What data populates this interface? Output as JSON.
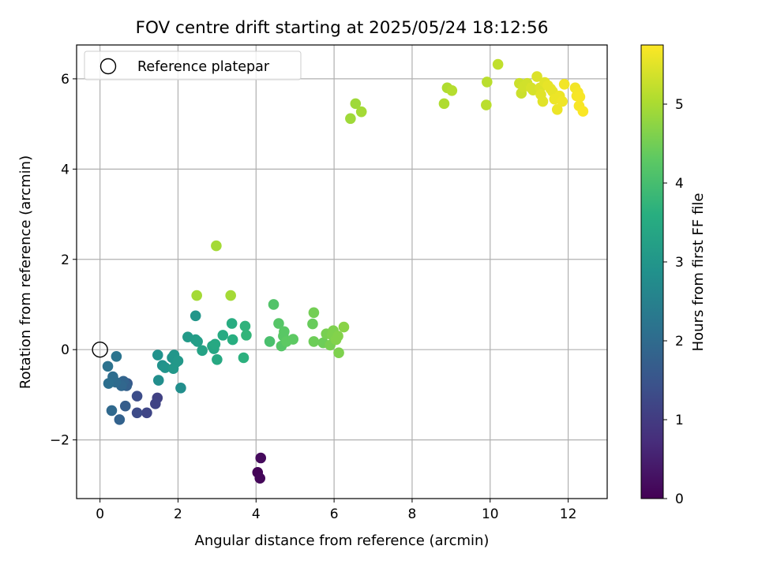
{
  "chart_data": {
    "type": "scatter",
    "title": "FOV centre drift starting at 2025/05/24 18:12:56",
    "xlabel": "Angular distance from reference (arcmin)",
    "ylabel": "Rotation from reference (arcmin)",
    "colorbar_label": "Hours from first FF file",
    "xlim": [
      -0.6,
      13.0
    ],
    "ylim": [
      -3.3,
      6.75
    ],
    "xticks": [
      0,
      2,
      4,
      6,
      8,
      10,
      12
    ],
    "yticks": [
      -2,
      0,
      2,
      4,
      6
    ],
    "xtick_labels": [
      "0",
      "2",
      "4",
      "6",
      "8",
      "10",
      "12"
    ],
    "ytick_labels": [
      "−2",
      "0",
      "2",
      "4",
      "6"
    ],
    "colorbar_range": [
      0,
      5.75
    ],
    "colorbar_ticks": [
      0,
      1,
      2,
      3,
      4,
      5
    ],
    "colorbar_tick_labels": [
      "0",
      "1",
      "2",
      "3",
      "4",
      "5"
    ],
    "colormap": "viridis",
    "grid": true,
    "legend": {
      "position": "top-left",
      "label": "Reference platepar"
    },
    "reference_point": {
      "x": 0,
      "y": 0
    },
    "points": [
      {
        "x": 4.04,
        "y": -2.72,
        "h": 0.05
      },
      {
        "x": 4.1,
        "y": -2.85,
        "h": 0.1
      },
      {
        "x": 4.12,
        "y": -2.4,
        "h": 0.15
      },
      {
        "x": 1.47,
        "y": -1.07,
        "h": 1.1
      },
      {
        "x": 1.42,
        "y": -1.2,
        "h": 1.15
      },
      {
        "x": 1.2,
        "y": -1.4,
        "h": 1.2
      },
      {
        "x": 0.95,
        "y": -1.4,
        "h": 1.3
      },
      {
        "x": 0.95,
        "y": -1.03,
        "h": 1.35
      },
      {
        "x": 0.7,
        "y": -0.75,
        "h": 1.6
      },
      {
        "x": 0.65,
        "y": -1.25,
        "h": 1.7
      },
      {
        "x": 0.68,
        "y": -0.8,
        "h": 1.75
      },
      {
        "x": 0.5,
        "y": -1.55,
        "h": 1.8
      },
      {
        "x": 0.6,
        "y": -0.7,
        "h": 1.85
      },
      {
        "x": 0.55,
        "y": -0.8,
        "h": 1.9
      },
      {
        "x": 0.3,
        "y": -1.35,
        "h": 1.95
      },
      {
        "x": 0.4,
        "y": -0.72,
        "h": 2.0
      },
      {
        "x": 0.33,
        "y": -0.6,
        "h": 2.05
      },
      {
        "x": 0.22,
        "y": -0.75,
        "h": 2.1
      },
      {
        "x": 0.2,
        "y": -0.37,
        "h": 2.15
      },
      {
        "x": 0.42,
        "y": -0.15,
        "h": 2.2
      },
      {
        "x": 1.5,
        "y": -0.68,
        "h": 2.8
      },
      {
        "x": 2.07,
        "y": -0.85,
        "h": 2.8
      },
      {
        "x": 1.48,
        "y": -0.12,
        "h": 2.9
      },
      {
        "x": 1.6,
        "y": -0.35,
        "h": 2.9
      },
      {
        "x": 1.67,
        "y": -0.4,
        "h": 2.95
      },
      {
        "x": 1.85,
        "y": -0.18,
        "h": 2.95
      },
      {
        "x": 1.9,
        "y": -0.12,
        "h": 3.0
      },
      {
        "x": 1.95,
        "y": -0.28,
        "h": 3.0
      },
      {
        "x": 2.0,
        "y": -0.25,
        "h": 3.05
      },
      {
        "x": 1.88,
        "y": -0.42,
        "h": 3.05
      },
      {
        "x": 2.45,
        "y": 0.75,
        "h": 3.0
      },
      {
        "x": 2.25,
        "y": 0.28,
        "h": 3.1
      },
      {
        "x": 2.45,
        "y": 0.22,
        "h": 3.15
      },
      {
        "x": 2.5,
        "y": 0.18,
        "h": 3.2
      },
      {
        "x": 2.62,
        "y": -0.02,
        "h": 3.3
      },
      {
        "x": 2.88,
        "y": 0.08,
        "h": 3.4
      },
      {
        "x": 2.92,
        "y": 0.02,
        "h": 3.4
      },
      {
        "x": 2.95,
        "y": 0.12,
        "h": 3.45
      },
      {
        "x": 3.0,
        "y": -0.22,
        "h": 3.45
      },
      {
        "x": 3.15,
        "y": 0.32,
        "h": 3.5
      },
      {
        "x": 3.38,
        "y": 0.58,
        "h": 3.55
      },
      {
        "x": 3.4,
        "y": 0.22,
        "h": 3.6
      },
      {
        "x": 3.68,
        "y": -0.18,
        "h": 3.65
      },
      {
        "x": 3.72,
        "y": 0.52,
        "h": 3.7
      },
      {
        "x": 3.75,
        "y": 0.32,
        "h": 3.75
      },
      {
        "x": 4.35,
        "y": 0.18,
        "h": 4.05
      },
      {
        "x": 4.45,
        "y": 1.0,
        "h": 4.15
      },
      {
        "x": 4.58,
        "y": 0.58,
        "h": 4.2
      },
      {
        "x": 4.65,
        "y": 0.08,
        "h": 4.2
      },
      {
        "x": 4.7,
        "y": 0.3,
        "h": 4.25
      },
      {
        "x": 4.72,
        "y": 0.4,
        "h": 4.25
      },
      {
        "x": 4.78,
        "y": 0.18,
        "h": 4.3
      },
      {
        "x": 4.95,
        "y": 0.23,
        "h": 4.3
      },
      {
        "x": 5.45,
        "y": 0.57,
        "h": 4.4
      },
      {
        "x": 5.48,
        "y": 0.82,
        "h": 4.5
      },
      {
        "x": 5.48,
        "y": 0.18,
        "h": 4.45
      },
      {
        "x": 5.72,
        "y": 0.15,
        "h": 4.45
      },
      {
        "x": 5.8,
        "y": 0.35,
        "h": 4.55
      },
      {
        "x": 5.9,
        "y": 0.1,
        "h": 4.55
      },
      {
        "x": 5.95,
        "y": 0.32,
        "h": 4.6
      },
      {
        "x": 5.98,
        "y": 0.42,
        "h": 4.6
      },
      {
        "x": 6.05,
        "y": 0.22,
        "h": 4.65
      },
      {
        "x": 6.1,
        "y": 0.3,
        "h": 4.65
      },
      {
        "x": 6.12,
        "y": -0.07,
        "h": 4.6
      },
      {
        "x": 6.25,
        "y": 0.5,
        "h": 4.7
      },
      {
        "x": 2.48,
        "y": 1.2,
        "h": 4.95
      },
      {
        "x": 3.35,
        "y": 1.2,
        "h": 4.95
      },
      {
        "x": 2.98,
        "y": 2.3,
        "h": 4.95
      },
      {
        "x": 6.42,
        "y": 5.12,
        "h": 4.9
      },
      {
        "x": 6.55,
        "y": 5.45,
        "h": 4.9
      },
      {
        "x": 6.7,
        "y": 5.27,
        "h": 4.95
      },
      {
        "x": 8.82,
        "y": 5.45,
        "h": 5.05
      },
      {
        "x": 8.9,
        "y": 5.8,
        "h": 5.05
      },
      {
        "x": 9.02,
        "y": 5.74,
        "h": 5.1
      },
      {
        "x": 9.9,
        "y": 5.42,
        "h": 5.15
      },
      {
        "x": 9.92,
        "y": 5.93,
        "h": 5.15
      },
      {
        "x": 10.2,
        "y": 6.32,
        "h": 5.2
      },
      {
        "x": 10.75,
        "y": 5.9,
        "h": 5.3
      },
      {
        "x": 10.8,
        "y": 5.68,
        "h": 5.3
      },
      {
        "x": 10.85,
        "y": 5.82,
        "h": 5.35
      },
      {
        "x": 10.95,
        "y": 5.9,
        "h": 5.35
      },
      {
        "x": 11.05,
        "y": 5.8,
        "h": 5.4
      },
      {
        "x": 11.1,
        "y": 5.75,
        "h": 5.4
      },
      {
        "x": 11.2,
        "y": 6.05,
        "h": 5.45
      },
      {
        "x": 11.28,
        "y": 5.8,
        "h": 5.45
      },
      {
        "x": 11.3,
        "y": 5.65,
        "h": 5.5
      },
      {
        "x": 11.35,
        "y": 5.5,
        "h": 5.5
      },
      {
        "x": 11.4,
        "y": 5.92,
        "h": 5.5
      },
      {
        "x": 11.48,
        "y": 5.85,
        "h": 5.55
      },
      {
        "x": 11.55,
        "y": 5.78,
        "h": 5.55
      },
      {
        "x": 11.6,
        "y": 5.72,
        "h": 5.55
      },
      {
        "x": 11.65,
        "y": 5.55,
        "h": 5.6
      },
      {
        "x": 11.72,
        "y": 5.32,
        "h": 5.6
      },
      {
        "x": 11.78,
        "y": 5.62,
        "h": 5.6
      },
      {
        "x": 11.85,
        "y": 5.5,
        "h": 5.62
      },
      {
        "x": 11.9,
        "y": 5.88,
        "h": 5.65
      },
      {
        "x": 12.18,
        "y": 5.8,
        "h": 5.65
      },
      {
        "x": 12.22,
        "y": 5.62,
        "h": 5.68
      },
      {
        "x": 12.25,
        "y": 5.7,
        "h": 5.68
      },
      {
        "x": 12.28,
        "y": 5.4,
        "h": 5.7
      },
      {
        "x": 12.3,
        "y": 5.6,
        "h": 5.7
      },
      {
        "x": 12.38,
        "y": 5.28,
        "h": 5.72
      }
    ]
  }
}
